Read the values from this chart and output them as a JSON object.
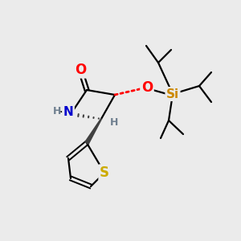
{
  "bg_color": "#ebebeb",
  "atom_colors": {
    "O": "#ff0000",
    "N": "#0000cd",
    "S": "#ccaa00",
    "Si": "#cc8800",
    "C": "#000000",
    "H": "#708090"
  },
  "bond_color": "#000000",
  "dash_color": "#ff0000",
  "wedge_color": "#404040",
  "figsize": [
    3.0,
    3.0
  ],
  "dpi": 100
}
